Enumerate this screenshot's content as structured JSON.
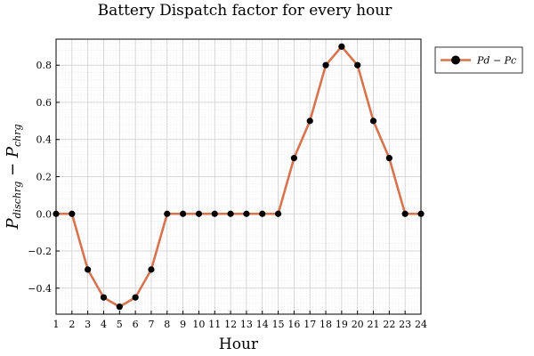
{
  "chart_data": {
    "type": "line",
    "title": "Battery Dispatch factor for every hour",
    "xlabel": "Hour",
    "ylabel": {
      "parts": [
        {
          "text": "P",
          "style": "main"
        },
        {
          "text": "dischrg",
          "style": "sub"
        },
        {
          "text": " − ",
          "style": "op"
        },
        {
          "text": "P",
          "style": "main"
        },
        {
          "text": "chrg",
          "style": "sub"
        }
      ]
    },
    "xlim": [
      1,
      24
    ],
    "ylim": [
      -0.54,
      0.94
    ],
    "x_ticks": [
      1,
      2,
      3,
      4,
      5,
      6,
      7,
      8,
      9,
      10,
      11,
      12,
      13,
      14,
      15,
      16,
      17,
      18,
      19,
      20,
      21,
      22,
      23,
      24
    ],
    "y_ticks": [
      -0.4,
      -0.2,
      0.0,
      0.2,
      0.4,
      0.6,
      0.8
    ],
    "y_tick_labels": [
      "−0.4",
      "−0.2",
      "0.0",
      "0.2",
      "0.4",
      "0.6",
      "0.8"
    ],
    "grid": true,
    "legend_position": "outside-top-right",
    "series": [
      {
        "name": "P_d − P_c",
        "legend_label": "Pd − Pc",
        "color": "#d6744f",
        "marker_color": "#000000",
        "x": [
          1,
          2,
          3,
          4,
          5,
          6,
          7,
          8,
          9,
          10,
          11,
          12,
          13,
          14,
          15,
          16,
          17,
          18,
          19,
          20,
          21,
          22,
          23,
          24
        ],
        "values": [
          0,
          0,
          -0.3,
          -0.45,
          -0.5,
          -0.45,
          -0.3,
          0,
          0,
          0,
          0,
          0,
          0,
          0,
          0,
          0.3,
          0.5,
          0.8,
          0.9,
          0.8,
          0.5,
          0.3,
          0,
          0
        ]
      }
    ]
  }
}
